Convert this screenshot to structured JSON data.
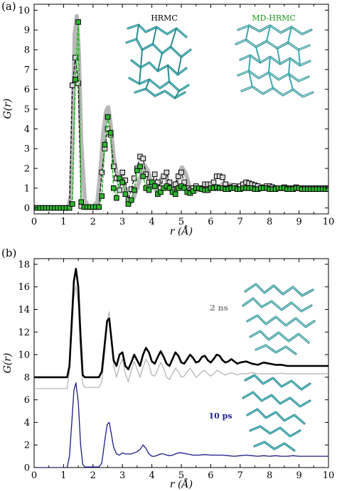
{
  "chart_data": [
    {
      "panel": "(a)",
      "type": "line",
      "xlabel": "r (Å)",
      "ylabel": "G(r)",
      "xlim": [
        0,
        10
      ],
      "ylim": [
        -0.3,
        10.3
      ],
      "xticks": [
        "0",
        "1",
        "2",
        "3",
        "4",
        "5",
        "6",
        "7",
        "8",
        "9",
        "10"
      ],
      "yticks": [
        "0",
        "1",
        "2",
        "3",
        "4",
        "5",
        "6",
        "7",
        "8",
        "9",
        "10"
      ],
      "grid": false,
      "inset_labels": [
        {
          "text": "HRMC",
          "color": "#000000"
        },
        {
          "text": "MD-HRMC",
          "color": "#1a9a1a"
        }
      ],
      "series": [
        {
          "style": "thick-gray-solid",
          "color": "#b8b8b8",
          "x": [
            0,
            1.15,
            1.25,
            1.32,
            1.38,
            1.45,
            1.52,
            1.6,
            1.72,
            1.85,
            2.0,
            2.15,
            2.25,
            2.35,
            2.45,
            2.52,
            2.6,
            2.7,
            2.85,
            3.0,
            3.15,
            3.25,
            3.35,
            3.5,
            3.62,
            3.75,
            3.88,
            4.0,
            4.15,
            4.3,
            4.45,
            4.6,
            4.75,
            4.9,
            5.02,
            5.15,
            5.3,
            5.5,
            5.7,
            6.0,
            6.2,
            6.4,
            6.6,
            6.9,
            7.2,
            7.5,
            7.9,
            8.4,
            9.0,
            9.5,
            10.0
          ],
          "y": [
            0,
            0,
            0.6,
            4.5,
            8.8,
            9.7,
            7.8,
            3.3,
            0.4,
            0.05,
            0.05,
            0.3,
            1.8,
            3.8,
            4.9,
            5.1,
            4.2,
            2.6,
            1.4,
            1.45,
            0.7,
            0.25,
            0.4,
            1.0,
            1.6,
            2.15,
            1.85,
            1.1,
            0.9,
            1.45,
            1.65,
            1.0,
            0.75,
            1.6,
            2.05,
            1.75,
            1.0,
            0.85,
            1.05,
            1.15,
            0.95,
            1.2,
            1.2,
            1.1,
            1.0,
            1.1,
            1.05,
            1.0,
            1.0,
            1.0,
            1.0
          ]
        },
        {
          "name": "HRMC",
          "style": "black-dashed-squares",
          "color": "#000000",
          "x": [
            0,
            0.1,
            0.2,
            0.3,
            0.4,
            0.5,
            0.6,
            0.7,
            0.8,
            0.9,
            1.0,
            1.1,
            1.2,
            1.3,
            1.4,
            1.5,
            1.6,
            1.7,
            1.8,
            1.9,
            2.0,
            2.1,
            2.2,
            2.3,
            2.4,
            2.5,
            2.6,
            2.7,
            2.8,
            2.9,
            3.0,
            3.1,
            3.2,
            3.3,
            3.4,
            3.5,
            3.6,
            3.7,
            3.8,
            3.9,
            4.0,
            4.1,
            4.2,
            4.3,
            4.4,
            4.5,
            4.6,
            4.7,
            4.8,
            4.9,
            5.0,
            5.1,
            5.2,
            5.3,
            5.4,
            5.5,
            5.6,
            5.7,
            5.8,
            5.9,
            6.0,
            6.1,
            6.2,
            6.3,
            6.4,
            6.5,
            6.6,
            6.7,
            6.8,
            6.9,
            7.0,
            7.1,
            7.2,
            7.3,
            7.4,
            7.5,
            7.6,
            7.7,
            7.8,
            7.9,
            8.0,
            8.1,
            8.2,
            8.3,
            8.4,
            8.5,
            8.6,
            8.7,
            8.8,
            8.9,
            9.0,
            9.1,
            9.2,
            9.3,
            9.4,
            9.5,
            9.6,
            9.7,
            9.8,
            9.9,
            10.0
          ],
          "y": [
            0,
            0,
            0,
            0,
            0,
            0,
            0,
            0,
            0,
            0,
            0,
            0,
            0,
            6.2,
            7.6,
            6.3,
            0.1,
            0.05,
            0.05,
            0.05,
            0.05,
            0.05,
            0.05,
            1.8,
            3.0,
            4.0,
            3.7,
            2.1,
            1.5,
            0.9,
            1.8,
            1.4,
            0.4,
            0.95,
            1.5,
            2.0,
            2.6,
            2.5,
            1.7,
            1.3,
            1.2,
            1.7,
            1.3,
            1.0,
            1.6,
            1.8,
            1.3,
            0.9,
            1.2,
            1.6,
            1.8,
            1.3,
            1.0,
            0.9,
            1.0,
            1.1,
            1.0,
            1.0,
            1.2,
            1.2,
            1.2,
            1.3,
            1.6,
            1.6,
            1.55,
            1.2,
            1.0,
            1.05,
            1.1,
            1.0,
            1.1,
            1.2,
            1.3,
            1.25,
            1.2,
            1.15,
            1.1,
            1.0,
            1.05,
            1.1,
            1.1,
            1.05,
            1.0,
            1.0,
            1.0,
            1.05,
            1.0,
            1.0,
            1.0,
            1.05,
            1.0,
            1.0,
            1.0,
            1.0,
            1.0,
            1.0,
            1.0,
            1.0,
            1.0,
            1.0,
            1.0
          ]
        },
        {
          "name": "MD-HRMC",
          "style": "green-dashed-squares",
          "color": "#2db82d",
          "x": [
            0,
            0.1,
            0.2,
            0.3,
            0.4,
            0.5,
            0.6,
            0.7,
            0.8,
            0.9,
            1.0,
            1.1,
            1.2,
            1.3,
            1.4,
            1.5,
            1.6,
            1.7,
            1.8,
            1.9,
            2.0,
            2.1,
            2.2,
            2.3,
            2.4,
            2.5,
            2.6,
            2.7,
            2.8,
            2.9,
            3.0,
            3.1,
            3.2,
            3.3,
            3.4,
            3.5,
            3.6,
            3.7,
            3.8,
            3.9,
            4.0,
            4.1,
            4.2,
            4.3,
            4.4,
            4.5,
            4.6,
            4.7,
            4.8,
            4.9,
            5.0,
            5.1,
            5.2,
            5.3,
            5.4,
            5.5,
            5.6,
            5.7,
            5.8,
            5.9,
            6.0,
            6.1,
            6.2,
            6.3,
            6.4,
            6.5,
            6.6,
            6.7,
            6.8,
            6.9,
            7.0,
            7.1,
            7.2,
            7.3,
            7.4,
            7.5,
            7.6,
            7.7,
            7.8,
            7.9,
            8.0,
            8.1,
            8.2,
            8.3,
            8.4,
            8.5,
            8.6,
            8.7,
            8.8,
            8.9,
            9.0,
            9.1,
            9.2,
            9.3,
            9.4,
            9.5,
            9.6,
            9.7,
            9.8,
            9.9,
            10.0
          ],
          "y": [
            0,
            0,
            0,
            0,
            0,
            0,
            0,
            0,
            0,
            0,
            0,
            0,
            0,
            0.2,
            6.5,
            9.4,
            0.3,
            0.05,
            0.05,
            0.05,
            0.05,
            0.05,
            0.05,
            0.6,
            3.2,
            4.6,
            3.8,
            1.0,
            0.5,
            1.5,
            1.3,
            0.7,
            0.2,
            0.4,
            0.9,
            1.9,
            2.1,
            1.6,
            1.0,
            0.9,
            1.3,
            1.1,
            0.7,
            0.8,
            1.0,
            1.1,
            1.0,
            0.8,
            0.7,
            1.0,
            1.1,
            1.0,
            0.8,
            0.75,
            0.85,
            1.0,
            1.0,
            0.95,
            0.9,
            0.9,
            1.0,
            1.0,
            1.05,
            1.0,
            1.0,
            0.95,
            0.95,
            1.0,
            1.0,
            0.95,
            0.95,
            1.0,
            1.0,
            1.0,
            1.0,
            0.95,
            0.95,
            1.0,
            1.0,
            1.0,
            0.95,
            0.95,
            0.95,
            1.0,
            1.0,
            1.0,
            0.95,
            0.95,
            0.95,
            1.0,
            1.0,
            0.95,
            0.95,
            0.95,
            0.95,
            0.95,
            0.95,
            0.95,
            0.95,
            0.95,
            0.95
          ]
        }
      ]
    },
    {
      "panel": "(b)",
      "type": "line",
      "xlabel": "r (Å)",
      "ylabel": "G(r)",
      "xlim": [
        0,
        10
      ],
      "ylim": [
        0,
        18.5
      ],
      "xticks": [
        "0",
        "1",
        "2",
        "3",
        "4",
        "5",
        "6",
        "7",
        "8",
        "9",
        "10"
      ],
      "yticks": [
        "0",
        "2",
        "4",
        "6",
        "8",
        "10",
        "12",
        "14",
        "16",
        "18"
      ],
      "grid": false,
      "inset_labels": [
        {
          "text": "2 ns",
          "color": "#888888"
        },
        {
          "text": "10 ps",
          "color": "#1a1a9a"
        }
      ],
      "series": [
        {
          "style": "gray-thin",
          "color": "#b0b0b0",
          "x": [
            0,
            1.0,
            1.12,
            1.2,
            1.28,
            1.35,
            1.42,
            1.5,
            1.58,
            1.65,
            1.72,
            1.8,
            1.9,
            2.05,
            2.2,
            2.3,
            2.4,
            2.48,
            2.55,
            2.62,
            2.7,
            2.8,
            2.9,
            3.0,
            3.1,
            3.2,
            3.3,
            3.4,
            3.5,
            3.6,
            3.7,
            3.8,
            3.9,
            4.0,
            4.1,
            4.2,
            4.3,
            4.4,
            4.5,
            4.6,
            4.7,
            4.8,
            4.9,
            5.0,
            5.1,
            5.2,
            5.3,
            5.4,
            5.5,
            5.6,
            5.7,
            5.8,
            5.9,
            6.0,
            6.1,
            6.2,
            6.3,
            6.4,
            6.5,
            6.6,
            6.7,
            6.8,
            6.9,
            7.0,
            7.2,
            7.4,
            7.6,
            7.8,
            8.0,
            8.2,
            8.4,
            8.6,
            8.8,
            9.0,
            9.2,
            9.4,
            9.6,
            9.8,
            10.0
          ],
          "y": [
            7.0,
            7.0,
            7.0,
            8.5,
            12.0,
            15.0,
            16.1,
            14.5,
            10.0,
            7.4,
            7.1,
            7.1,
            7.1,
            7.1,
            7.1,
            7.6,
            10.2,
            13.0,
            13.8,
            11.5,
            9.0,
            8.0,
            9.0,
            9.6,
            8.3,
            7.6,
            8.6,
            9.4,
            8.7,
            8.0,
            8.9,
            9.6,
            9.1,
            8.2,
            8.1,
            8.7,
            9.3,
            8.8,
            8.0,
            7.8,
            8.3,
            8.8,
            8.5,
            8.0,
            8.1,
            8.5,
            8.8,
            8.4,
            8.0,
            8.2,
            8.5,
            8.6,
            8.3,
            8.1,
            8.3,
            8.6,
            8.5,
            8.3,
            8.2,
            8.3,
            8.4,
            8.3,
            8.2,
            8.3,
            8.3,
            8.4,
            8.3,
            8.3,
            8.3,
            8.3,
            8.35,
            8.3,
            8.3,
            8.3,
            8.3,
            8.3,
            8.3,
            8.3,
            8.3
          ]
        },
        {
          "name": "2 ns",
          "style": "black-thick",
          "color": "#000000",
          "x": [
            0,
            1.0,
            1.12,
            1.2,
            1.28,
            1.35,
            1.42,
            1.5,
            1.58,
            1.65,
            1.72,
            1.8,
            1.9,
            2.05,
            2.2,
            2.3,
            2.4,
            2.48,
            2.55,
            2.62,
            2.7,
            2.8,
            2.9,
            3.0,
            3.1,
            3.2,
            3.3,
            3.4,
            3.5,
            3.6,
            3.7,
            3.8,
            3.9,
            4.0,
            4.1,
            4.2,
            4.3,
            4.4,
            4.5,
            4.6,
            4.7,
            4.8,
            4.9,
            5.0,
            5.1,
            5.2,
            5.3,
            5.4,
            5.5,
            5.6,
            5.7,
            5.8,
            5.9,
            6.0,
            6.1,
            6.2,
            6.3,
            6.4,
            6.5,
            6.6,
            6.7,
            6.8,
            6.9,
            7.0,
            7.2,
            7.4,
            7.6,
            7.8,
            8.0,
            8.2,
            8.4,
            8.6,
            8.8,
            9.0,
            9.2,
            9.4,
            9.6,
            9.8,
            10.0
          ],
          "y": [
            8.0,
            8.0,
            8.0,
            9.0,
            13.0,
            16.5,
            17.6,
            16.0,
            11.5,
            8.2,
            8.0,
            8.0,
            8.0,
            8.0,
            8.0,
            8.5,
            11.0,
            13.0,
            13.2,
            11.5,
            9.5,
            9.0,
            10.0,
            10.2,
            9.0,
            8.7,
            9.3,
            10.0,
            9.5,
            9.0,
            10.0,
            10.6,
            10.2,
            9.4,
            9.2,
            9.8,
            10.3,
            9.8,
            9.2,
            9.0,
            9.6,
            10.2,
            9.9,
            9.3,
            9.2,
            9.6,
            10.0,
            9.7,
            9.3,
            9.4,
            9.8,
            9.9,
            9.5,
            9.3,
            9.6,
            10.0,
            9.9,
            9.5,
            9.3,
            9.4,
            9.6,
            9.4,
            9.2,
            9.3,
            9.4,
            9.2,
            9.1,
            9.3,
            9.2,
            9.1,
            9.1,
            9.0,
            9.0,
            9.0,
            9.0,
            9.0,
            9.0,
            9.0,
            9.0
          ]
        },
        {
          "name": "10 ps",
          "style": "navy-thin",
          "color": "#1a1a8c",
          "x": [
            0,
            1.0,
            1.12,
            1.2,
            1.28,
            1.35,
            1.42,
            1.5,
            1.58,
            1.65,
            1.72,
            1.8,
            1.9,
            2.05,
            2.2,
            2.3,
            2.4,
            2.48,
            2.55,
            2.62,
            2.7,
            2.8,
            2.9,
            3.0,
            3.1,
            3.2,
            3.3,
            3.4,
            3.5,
            3.6,
            3.7,
            3.8,
            3.9,
            4.0,
            4.1,
            4.2,
            4.3,
            4.4,
            4.5,
            4.6,
            4.7,
            4.8,
            4.9,
            5.0,
            5.2,
            5.4,
            5.6,
            5.8,
            6.0,
            6.2,
            6.4,
            6.6,
            6.8,
            7.0,
            7.2,
            7.4,
            7.6,
            7.8,
            8.0,
            8.2,
            8.4,
            8.6,
            8.8,
            9.0,
            9.2,
            9.4,
            9.6,
            9.8,
            10.0
          ],
          "y": [
            0,
            0,
            0,
            1.0,
            4.0,
            6.8,
            7.5,
            5.8,
            2.0,
            0.3,
            0.05,
            0.05,
            0.05,
            0.05,
            0.05,
            0.4,
            2.4,
            3.8,
            4.0,
            3.0,
            1.8,
            1.2,
            1.1,
            1.3,
            1.2,
            1.2,
            1.2,
            1.3,
            1.4,
            1.6,
            2.0,
            1.7,
            1.2,
            1.0,
            1.0,
            1.1,
            1.2,
            1.2,
            1.1,
            1.05,
            1.1,
            1.2,
            1.3,
            1.3,
            1.2,
            1.1,
            1.1,
            1.15,
            1.1,
            1.1,
            1.1,
            1.05,
            1.0,
            1.05,
            1.1,
            1.05,
            1.0,
            1.05,
            1.0,
            1.05,
            1.0,
            1.0,
            1.05,
            1.0,
            1.0,
            1.0,
            1.0,
            1.0,
            1.0
          ]
        }
      ]
    }
  ]
}
